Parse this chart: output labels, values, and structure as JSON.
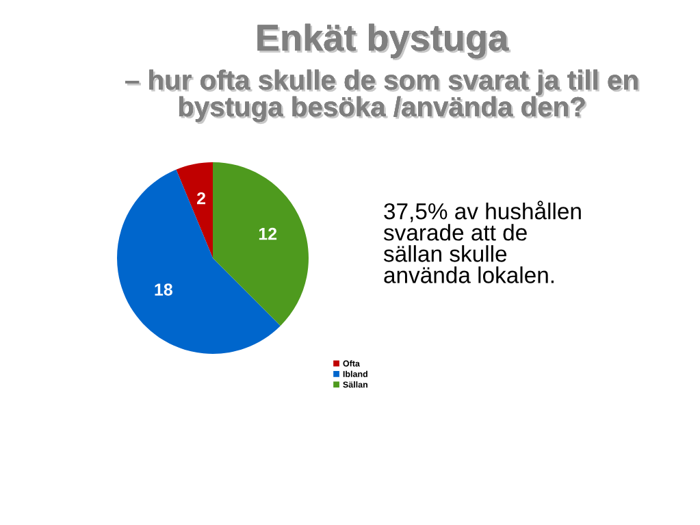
{
  "chart_data": {
    "type": "pie",
    "title": "Enkät bystuga",
    "subtitle": "– hur ofta skulle de som svarat ja till en bystuga besöka /använda den?",
    "categories": [
      "Ofta",
      "Ibland",
      "Sällan"
    ],
    "values": [
      2,
      18,
      12
    ],
    "colors": [
      "#c00000",
      "#0066cc",
      "#4e9a1e"
    ],
    "data_labels": true,
    "legend": "bottom right",
    "annotations": [
      "37,5% av hushållen svarade att de sällan skulle använda lokalen."
    ]
  }
}
